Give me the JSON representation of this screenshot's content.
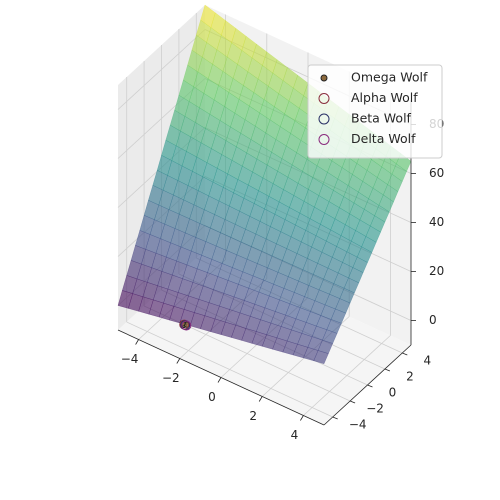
{
  "chart_data": {
    "type": "surface3d",
    "title": "",
    "x": {
      "label": "",
      "range": [
        -5,
        5
      ],
      "ticks": [
        -4,
        -2,
        0,
        2,
        4
      ]
    },
    "y": {
      "label": "",
      "range": [
        -5,
        5
      ],
      "ticks": [
        -4,
        -2,
        0,
        2,
        4
      ]
    },
    "z": {
      "label": "",
      "range": [
        -10,
        90
      ],
      "ticks": [
        0,
        20,
        40,
        60,
        80
      ]
    },
    "surface": {
      "colormap": "viridis",
      "alpha": 0.6,
      "grid_range": [
        -5,
        5
      ],
      "z_at_corners": {
        "x-5_y-5": 0,
        "x5_y-5": 15,
        "x-5_y5": 90,
        "x5_y5": 65
      }
    },
    "series": [
      {
        "name": "Omega Wolf",
        "color": "#8c6a3e",
        "marker": "filled-circle",
        "points": [
          [
            -2.1,
            -4.3,
            1.0
          ],
          [
            -2.0,
            -4.2,
            1.2
          ],
          [
            -2.2,
            -4.2,
            0.9
          ]
        ]
      },
      {
        "name": "Alpha Wolf",
        "color": "#8b2f3f",
        "marker": "hollow-circle",
        "points": [
          [
            -2.1,
            -4.25,
            1.0
          ]
        ]
      },
      {
        "name": "Beta Wolf",
        "color": "#2a3166",
        "marker": "hollow-circle",
        "points": [
          [
            -2.05,
            -4.25,
            1.0
          ]
        ]
      },
      {
        "name": "Delta Wolf",
        "color": "#8a2c7e",
        "marker": "hollow-circle",
        "points": [
          [
            -2.0,
            -4.25,
            1.0
          ]
        ]
      }
    ],
    "grid": true,
    "legend_position": "top-right"
  },
  "colors": {
    "pane_left": "#ebebeb",
    "pane_back": "#f2f2f2",
    "pane_floor": "#f5f5f5",
    "grid": "#cfcfcf",
    "axis": "#262626"
  }
}
